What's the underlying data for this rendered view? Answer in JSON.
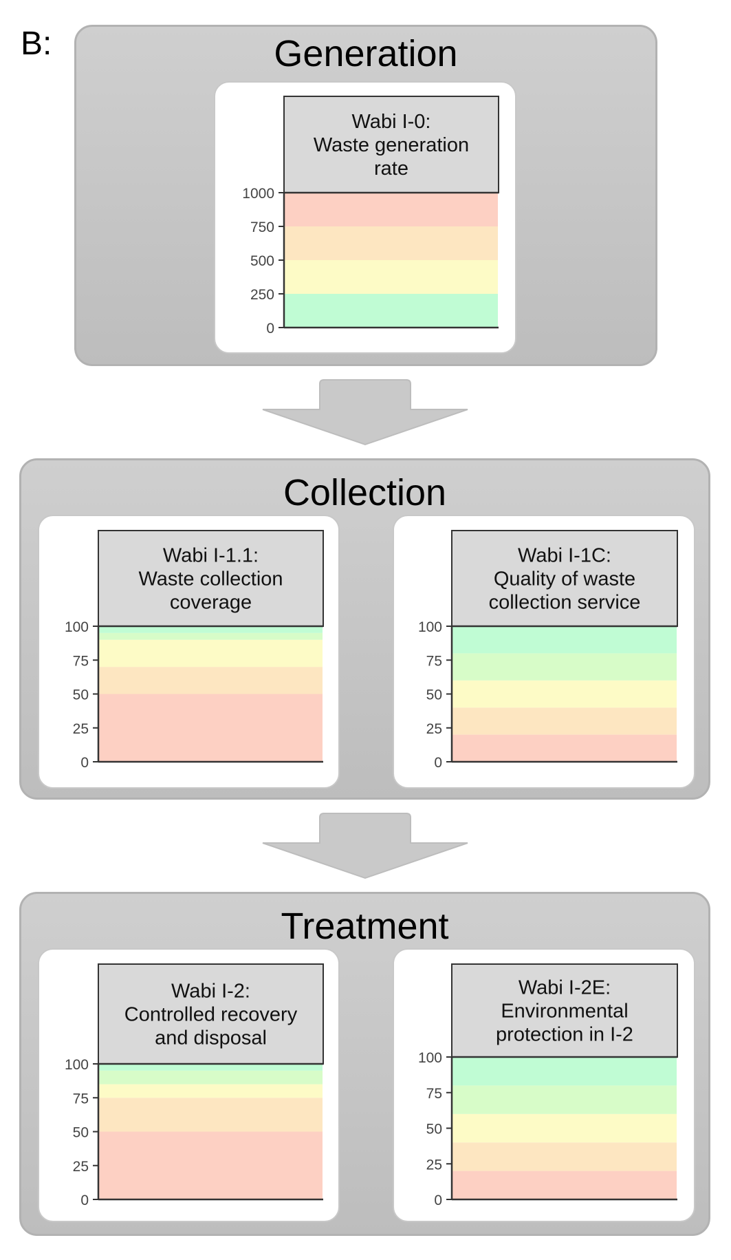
{
  "panel_label": "B:",
  "colors": {
    "red": "#fdd0c3",
    "orange": "#fde6c1",
    "yellow": "#fdfbc6",
    "lightgreen": "#d7fcc8",
    "green": "#c0fcd4",
    "header_bg": "#d9d9d9",
    "stage_bg": "#c6c6c6"
  },
  "stages": [
    {
      "title": "Generation"
    },
    {
      "title": "Collection"
    },
    {
      "title": "Treatment"
    }
  ],
  "chart_data": [
    {
      "type": "bar",
      "title_lines": [
        "Wabi I-0:",
        "Waste generation",
        "rate"
      ],
      "ylim": [
        0,
        1000
      ],
      "yticks": [
        "0",
        "250",
        "500",
        "750",
        "1000"
      ],
      "bands": [
        {
          "from": 0,
          "to": 250,
          "color": "green"
        },
        {
          "from": 250,
          "to": 500,
          "color": "yellow"
        },
        {
          "from": 500,
          "to": 750,
          "color": "orange"
        },
        {
          "from": 750,
          "to": 1000,
          "color": "red"
        }
      ]
    },
    {
      "type": "bar",
      "title_lines": [
        "Wabi I-1.1:",
        "Waste collection",
        "coverage"
      ],
      "ylim": [
        0,
        100
      ],
      "yticks": [
        "0",
        "25",
        "50",
        "75",
        "100"
      ],
      "bands": [
        {
          "from": 0,
          "to": 50,
          "color": "red"
        },
        {
          "from": 50,
          "to": 70,
          "color": "orange"
        },
        {
          "from": 70,
          "to": 90,
          "color": "yellow"
        },
        {
          "from": 90,
          "to": 95,
          "color": "lightgreen"
        },
        {
          "from": 95,
          "to": 100,
          "color": "green"
        }
      ]
    },
    {
      "type": "bar",
      "title_lines": [
        "Wabi I-1C:",
        "Quality of waste",
        "collection service"
      ],
      "ylim": [
        0,
        100
      ],
      "yticks": [
        "0",
        "25",
        "50",
        "75",
        "100"
      ],
      "bands": [
        {
          "from": 0,
          "to": 20,
          "color": "red"
        },
        {
          "from": 20,
          "to": 40,
          "color": "orange"
        },
        {
          "from": 40,
          "to": 60,
          "color": "yellow"
        },
        {
          "from": 60,
          "to": 80,
          "color": "lightgreen"
        },
        {
          "from": 80,
          "to": 100,
          "color": "green"
        }
      ]
    },
    {
      "type": "bar",
      "title_lines": [
        "Wabi I-2:",
        "Controlled recovery",
        "and disposal"
      ],
      "ylim": [
        0,
        100
      ],
      "yticks": [
        "0",
        "25",
        "50",
        "75",
        "100"
      ],
      "bands": [
        {
          "from": 0,
          "to": 50,
          "color": "red"
        },
        {
          "from": 50,
          "to": 75,
          "color": "orange"
        },
        {
          "from": 75,
          "to": 85,
          "color": "yellow"
        },
        {
          "from": 85,
          "to": 95,
          "color": "lightgreen"
        },
        {
          "from": 95,
          "to": 100,
          "color": "green"
        }
      ]
    },
    {
      "type": "bar",
      "title_lines": [
        "Wabi I-2E:",
        "Environmental",
        "protection in I-2"
      ],
      "ylim": [
        0,
        100
      ],
      "yticks": [
        "0",
        "25",
        "50",
        "75",
        "100"
      ],
      "bands": [
        {
          "from": 0,
          "to": 20,
          "color": "red"
        },
        {
          "from": 20,
          "to": 40,
          "color": "orange"
        },
        {
          "from": 40,
          "to": 60,
          "color": "yellow"
        },
        {
          "from": 60,
          "to": 80,
          "color": "lightgreen"
        },
        {
          "from": 80,
          "to": 100,
          "color": "green"
        }
      ]
    }
  ]
}
